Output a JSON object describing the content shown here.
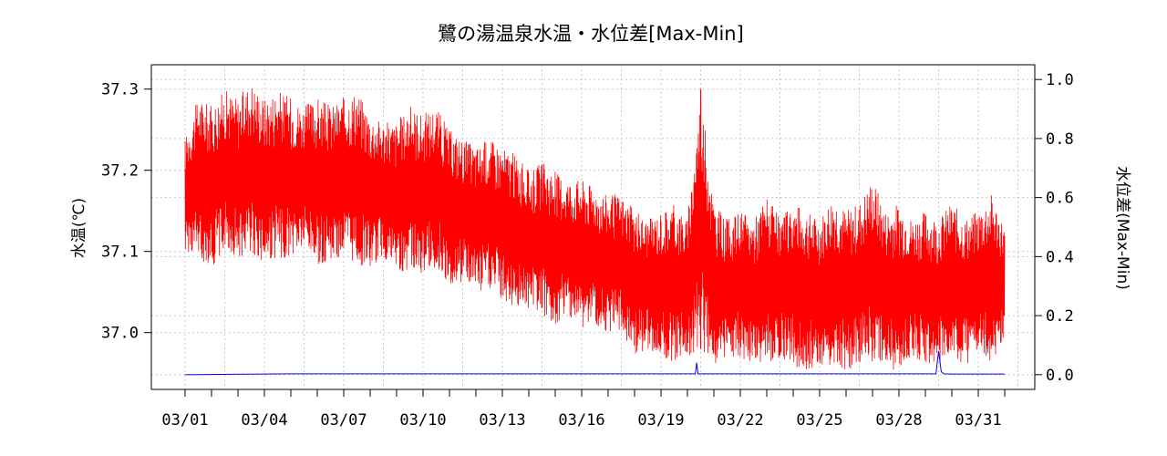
{
  "chart_data": {
    "type": "line",
    "title": "鷺の湯温泉水温・水位差[Max-Min]",
    "ylabel_left": "水温(℃)",
    "ylabel_right": "水位差(Max-Min)",
    "xticks": [
      "03/01",
      "03/04",
      "03/07",
      "03/10",
      "03/13",
      "03/16",
      "03/19",
      "03/22",
      "03/25",
      "03/28",
      "03/31"
    ],
    "x_range_days": [
      1,
      32
    ],
    "y_left": {
      "ylim": [
        36.93,
        37.33
      ],
      "ticks": [
        "37.0",
        "37.1",
        "37.2",
        "37.3"
      ]
    },
    "y_right": {
      "ylim": [
        -0.05,
        1.05
      ],
      "ticks": [
        "0.0",
        "0.2",
        "0.4",
        "0.6",
        "0.8",
        "1.0"
      ]
    },
    "grid": true,
    "series": [
      {
        "name": "水温",
        "axis": "left",
        "color": "#ff0000",
        "x": [
          1.0,
          1.5,
          2.0,
          2.5,
          3.0,
          3.5,
          4.0,
          4.5,
          5.0,
          5.5,
          6.0,
          6.5,
          7.0,
          7.5,
          8.0,
          8.5,
          9.0,
          9.5,
          10.0,
          10.5,
          11.0,
          11.5,
          12.0,
          12.5,
          13.0,
          13.5,
          14.0,
          14.5,
          15.0,
          15.5,
          16.0,
          16.5,
          17.0,
          17.5,
          18.0,
          18.5,
          19.0,
          19.5,
          20.0,
          20.5,
          21.0,
          21.5,
          22.0,
          22.5,
          23.0,
          23.5,
          24.0,
          24.5,
          25.0,
          25.5,
          26.0,
          26.5,
          27.0,
          27.5,
          28.0,
          28.5,
          29.0,
          29.5,
          30.0,
          30.5,
          31.0,
          31.5,
          32.0
        ],
        "min": [
          37.1,
          37.09,
          37.08,
          37.1,
          37.09,
          37.1,
          37.08,
          37.09,
          37.09,
          37.1,
          37.08,
          37.09,
          37.09,
          37.08,
          37.08,
          37.09,
          37.07,
          37.08,
          37.07,
          37.08,
          37.06,
          37.06,
          37.05,
          37.05,
          37.04,
          37.03,
          37.03,
          37.02,
          37.01,
          37.02,
          37.0,
          37.01,
          37.0,
          37.0,
          36.97,
          36.98,
          36.97,
          36.96,
          36.97,
          36.98,
          36.96,
          36.97,
          36.97,
          36.96,
          36.96,
          36.97,
          36.96,
          36.95,
          36.96,
          36.96,
          36.95,
          36.96,
          36.96,
          36.96,
          36.95,
          36.97,
          36.96,
          36.96,
          36.97,
          36.96,
          36.97,
          36.96,
          36.99
        ],
        "max": [
          37.24,
          37.29,
          37.28,
          37.3,
          37.29,
          37.31,
          37.29,
          37.3,
          37.29,
          37.28,
          37.29,
          37.28,
          37.29,
          37.3,
          37.27,
          37.26,
          37.26,
          37.28,
          37.27,
          37.28,
          37.25,
          37.24,
          37.23,
          37.24,
          37.23,
          37.22,
          37.2,
          37.21,
          37.2,
          37.19,
          37.19,
          37.18,
          37.17,
          37.17,
          37.15,
          37.14,
          37.15,
          37.16,
          37.14,
          37.3,
          37.16,
          37.14,
          37.15,
          37.14,
          37.17,
          37.14,
          37.16,
          37.15,
          37.14,
          37.17,
          37.15,
          37.16,
          37.19,
          37.15,
          37.16,
          37.14,
          37.15,
          37.14,
          37.16,
          37.14,
          37.15,
          37.17,
          37.13
        ]
      },
      {
        "name": "水位差",
        "axis": "right",
        "color": "#0000ff",
        "x": [
          1.0,
          5.0,
          10.0,
          15.0,
          20.0,
          20.3,
          20.35,
          20.4,
          25.0,
          28.0,
          29.4,
          29.5,
          29.6,
          29.7,
          30.0,
          32.0
        ],
        "values": [
          0.0,
          0.003,
          0.003,
          0.003,
          0.003,
          0.003,
          0.04,
          0.003,
          0.003,
          0.003,
          0.003,
          0.08,
          0.01,
          0.003,
          0.002,
          0.002
        ]
      }
    ]
  }
}
